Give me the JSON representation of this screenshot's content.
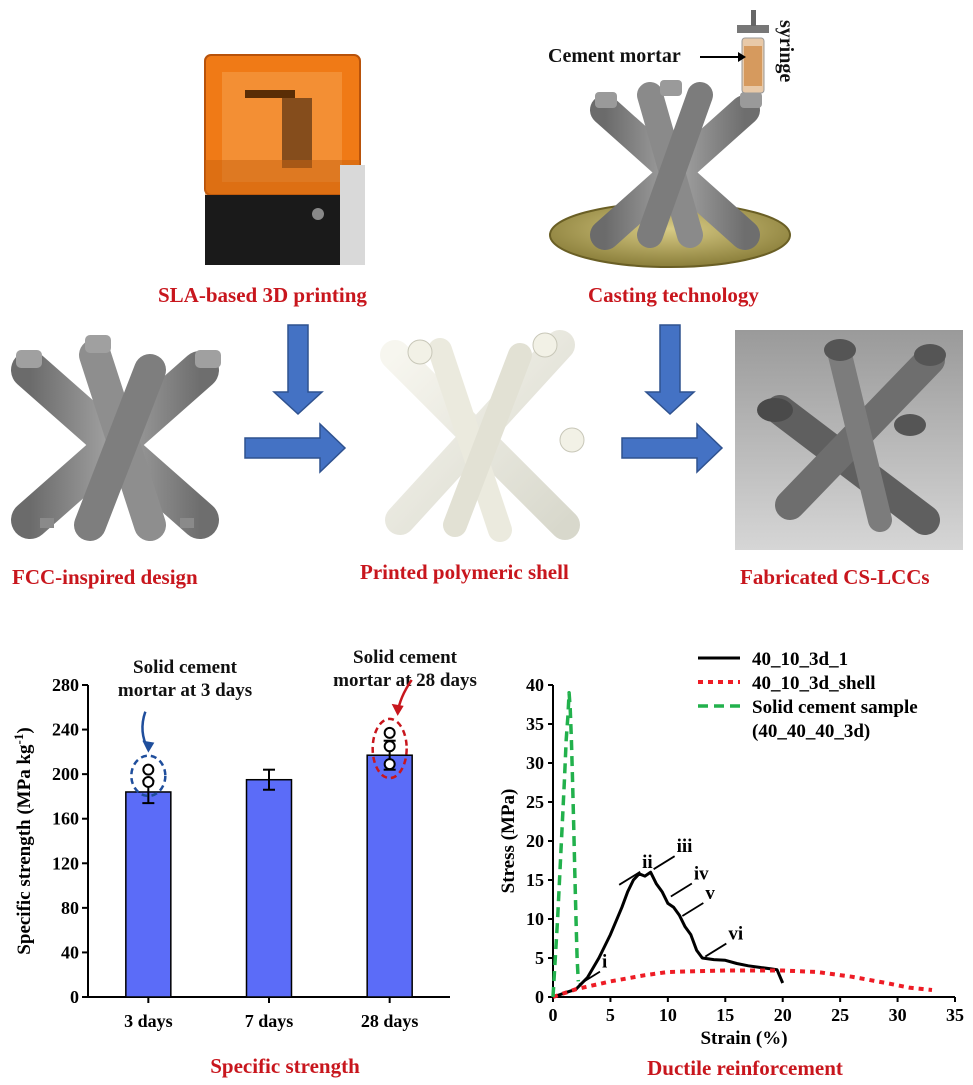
{
  "schematic": {
    "captions": {
      "sla": "SLA-based 3D printing",
      "casting": "Casting technology",
      "fcc": "FCC-inspired design",
      "shell": "Printed polymeric shell",
      "fabricated": "Fabricated CS-LCCs"
    },
    "labels": {
      "cement_mortar": "Cement mortar",
      "syringe": "syringe"
    },
    "colors": {
      "caption": "#c8161d",
      "arrow": "#4472c4",
      "printer_lid": "#f07a16"
    }
  },
  "chart_data": [
    {
      "type": "bar",
      "caption": "Specific strength",
      "categories": [
        "3 days",
        "7 days",
        "28 days"
      ],
      "values": [
        184,
        195,
        217
      ],
      "errors": [
        10,
        9,
        13
      ],
      "ylabel": "Specific strength (MPa kg",
      "ylabel_sup": "-1",
      "ylabel_end": ")",
      "ylim": [
        0,
        280
      ],
      "yticks": [
        0,
        40,
        80,
        120,
        160,
        200,
        240,
        280
      ],
      "bar_color": "#5b6cf8",
      "solid_points": [
        {
          "category": "3 days",
          "values": [
            193,
            204
          ],
          "highlight": "#1f4e9c",
          "callout": [
            "Solid cement",
            "mortar at 3 days"
          ]
        },
        {
          "category": "28 days",
          "values": [
            209,
            225,
            237
          ],
          "highlight": "#c8161d",
          "callout": [
            "Solid cement",
            "mortar at 28 days"
          ]
        }
      ]
    },
    {
      "type": "line",
      "caption": "Ductile reinforcement",
      "xlabel": "Strain (%)",
      "ylabel": "Stress (MPa)",
      "xlim": [
        0,
        35
      ],
      "ylim": [
        0,
        40
      ],
      "xticks": [
        0,
        5,
        10,
        15,
        20,
        25,
        30,
        35
      ],
      "yticks": [
        0,
        5,
        10,
        15,
        20,
        25,
        30,
        35,
        40
      ],
      "legend_position": "top-right",
      "series": [
        {
          "name": "40_10_3d_1",
          "color": "#000000",
          "dash": "solid",
          "points": [
            [
              0,
              0
            ],
            [
              1,
              0.5
            ],
            [
              2,
              1
            ],
            [
              3,
              2.5
            ],
            [
              4,
              5
            ],
            [
              5,
              8
            ],
            [
              6,
              11.5
            ],
            [
              6.5,
              13.5
            ],
            [
              7,
              15
            ],
            [
              7.5,
              15.8
            ],
            [
              8,
              15.5
            ],
            [
              8.5,
              16
            ],
            [
              9,
              14.5
            ],
            [
              9.5,
              13.5
            ],
            [
              10,
              12
            ],
            [
              10.5,
              11.5
            ],
            [
              11,
              10.5
            ],
            [
              11.5,
              9
            ],
            [
              12,
              8
            ],
            [
              12.5,
              6
            ],
            [
              13,
              5
            ],
            [
              14,
              4.8
            ],
            [
              15,
              4.7
            ],
            [
              16,
              4.3
            ],
            [
              17,
              4
            ],
            [
              18,
              3.8
            ],
            [
              19,
              3.6
            ],
            [
              19.5,
              3.5
            ],
            [
              20,
              1.8
            ]
          ]
        },
        {
          "name": "40_10_3d_shell",
          "color": "#ee1c25",
          "dash": "dotted",
          "points": [
            [
              0,
              0
            ],
            [
              2,
              1
            ],
            [
              5,
              2
            ],
            [
              8,
              2.8
            ],
            [
              10,
              3.2
            ],
            [
              15,
              3.4
            ],
            [
              20,
              3.4
            ],
            [
              23,
              3.2
            ],
            [
              26,
              2.6
            ],
            [
              29,
              1.8
            ],
            [
              31,
              1.2
            ],
            [
              33,
              0.9
            ]
          ]
        },
        {
          "name": "Solid cement sample (40_40_40_3d)",
          "color": "#22b14c",
          "dash": "dashed",
          "points": [
            [
              0,
              0
            ],
            [
              0.2,
              5
            ],
            [
              0.4,
              10
            ],
            [
              0.6,
              16
            ],
            [
              0.8,
              22
            ],
            [
              1,
              28
            ],
            [
              1.15,
              33
            ],
            [
              1.3,
              36
            ],
            [
              1.4,
              39
            ],
            [
              1.5,
              37
            ],
            [
              1.6,
              33
            ],
            [
              1.7,
              28
            ],
            [
              1.8,
              22
            ],
            [
              1.9,
              16
            ],
            [
              2,
              10
            ],
            [
              2.1,
              5
            ],
            [
              2.2,
              2
            ]
          ]
        }
      ],
      "annotations": [
        {
          "label": "i",
          "x": 2,
          "y": 1.2
        },
        {
          "label": "ii",
          "x": 5.5,
          "y": 14
        },
        {
          "label": "iii",
          "x": 8.5,
          "y": 16
        },
        {
          "label": "iv",
          "x": 10,
          "y": 12.5
        },
        {
          "label": "v",
          "x": 11,
          "y": 10
        },
        {
          "label": "vi",
          "x": 13,
          "y": 4.8
        }
      ]
    }
  ]
}
